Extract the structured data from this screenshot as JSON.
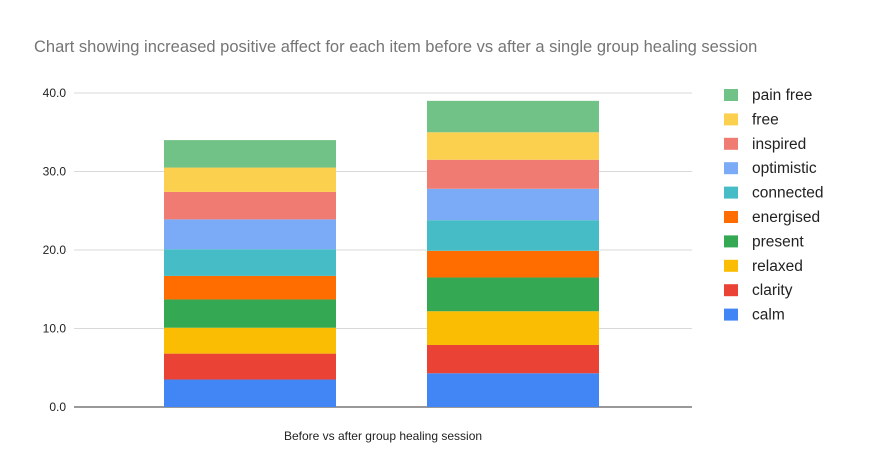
{
  "chart_data": {
    "type": "bar",
    "stacked": true,
    "title": "Chart showing increased positive affect for each item before vs after a single group healing session",
    "xlabel": "Before vs after group healing session",
    "ylabel": "",
    "categories": [
      "",
      ""
    ],
    "ylim": [
      0,
      40
    ],
    "yticks": [
      "0.0",
      "10.0",
      "20.0",
      "30.0",
      "40.0"
    ],
    "grid": true,
    "legend_position": "right",
    "series": [
      {
        "name": "calm",
        "color": "#4285f4",
        "values": [
          3.5,
          4.3
        ]
      },
      {
        "name": "clarity",
        "color": "#ea4335",
        "values": [
          3.3,
          3.6
        ]
      },
      {
        "name": "relaxed",
        "color": "#fbbc04",
        "values": [
          3.3,
          4.3
        ]
      },
      {
        "name": "present",
        "color": "#34a853",
        "values": [
          3.6,
          4.3
        ]
      },
      {
        "name": "energised",
        "color": "#ff6d01",
        "values": [
          3.0,
          3.4
        ]
      },
      {
        "name": "connected",
        "color": "#46bdc6",
        "values": [
          3.4,
          3.9
        ]
      },
      {
        "name": "optimistic",
        "color": "#7baaf7",
        "values": [
          3.8,
          4.0
        ]
      },
      {
        "name": "inspired",
        "color": "#f07b72",
        "values": [
          3.5,
          3.7
        ]
      },
      {
        "name": "free",
        "color": "#fcd04f",
        "values": [
          3.1,
          3.5
        ]
      },
      {
        "name": "pain free",
        "color": "#71c287",
        "values": [
          3.5,
          4.0
        ]
      }
    ]
  }
}
